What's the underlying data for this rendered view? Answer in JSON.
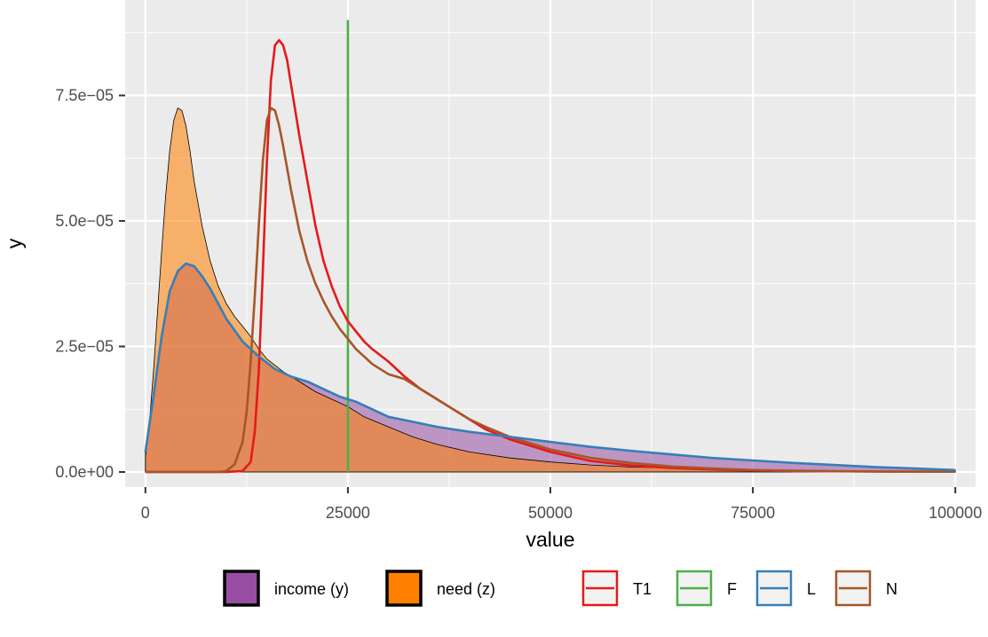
{
  "chart_data": {
    "type": "area",
    "xlabel": "value",
    "ylabel": "y",
    "xlim": [
      -2500,
      102500
    ],
    "ylim": [
      -3e-06,
      9.4e-05
    ],
    "x_ticks": [
      0,
      25000,
      50000,
      75000,
      100000
    ],
    "x_tick_labels": [
      "0",
      "25000",
      "50000",
      "75000",
      "100000"
    ],
    "y_ticks": [
      0,
      2.5e-05,
      5e-05,
      7.5e-05
    ],
    "y_tick_labels": [
      "0.0e+00",
      "2.5e−05",
      "5.0e−05",
      "7.5e−05"
    ],
    "grid": true,
    "legend_position": "bottom",
    "vline": {
      "x": 25000,
      "y_top": 9e-05,
      "series": "F"
    },
    "fill_series": [
      {
        "name": "income (y)",
        "fill": "#984EA3",
        "x": [
          0,
          1000,
          2000,
          3000,
          4000,
          5000,
          6000,
          7000,
          8000,
          9000,
          10000,
          12000,
          14000,
          16000,
          18000,
          20000,
          22000,
          24000,
          25000,
          26000,
          28000,
          30000,
          33000,
          36000,
          40000,
          45000,
          50000,
          55000,
          60000,
          65000,
          70000,
          75000,
          80000,
          85000,
          90000,
          95000,
          100000
        ],
        "values": [
          4e-06,
          1.5e-05,
          2.7e-05,
          3.6e-05,
          4e-05,
          4.15e-05,
          4.1e-05,
          3.9e-05,
          3.65e-05,
          3.35e-05,
          3.05e-05,
          2.6e-05,
          2.3e-05,
          2.05e-05,
          1.9e-05,
          1.8e-05,
          1.65e-05,
          1.5e-05,
          1.45e-05,
          1.4e-05,
          1.25e-05,
          1.1e-05,
          1e-05,
          9e-06,
          8e-06,
          7e-06,
          6e-06,
          5e-06,
          4.2e-06,
          3.5e-06,
          2.8e-06,
          2.3e-06,
          1.8e-06,
          1.4e-06,
          1e-06,
          7e-07,
          4e-07
        ]
      },
      {
        "name": "need (z)",
        "fill": "#FF7F00",
        "x": [
          0,
          500,
          1000,
          1500,
          2000,
          2500,
          3000,
          3500,
          4000,
          4500,
          5000,
          5500,
          6000,
          7000,
          8000,
          9000,
          10000,
          11000,
          12000,
          13000,
          14000,
          15000,
          17000,
          19000,
          21000,
          23000,
          25000,
          27000,
          30000,
          33000,
          36000,
          40000,
          45000,
          50000,
          55000,
          60000,
          70000,
          80000,
          90000,
          100000
        ],
        "values": [
          3e-06,
          1e-05,
          2e-05,
          3.2e-05,
          4.4e-05,
          5.5e-05,
          6.4e-05,
          7e-05,
          7.25e-05,
          7.2e-05,
          6.9e-05,
          6.4e-05,
          5.8e-05,
          4.9e-05,
          4.2e-05,
          3.7e-05,
          3.35e-05,
          3.1e-05,
          2.9e-05,
          2.7e-05,
          2.45e-05,
          2.25e-05,
          2e-05,
          1.8e-05,
          1.6e-05,
          1.45e-05,
          1.3e-05,
          1.1e-05,
          9e-06,
          7e-06,
          5.5e-06,
          4e-06,
          2.8e-06,
          2e-06,
          1.4e-06,
          1e-06,
          6e-07,
          3e-07,
          1.5e-07,
          1e-07
        ]
      }
    ],
    "line_series": [
      {
        "name": "T1",
        "color": "#E41A1C",
        "x": [
          0,
          5000,
          10000,
          12000,
          13000,
          13500,
          14000,
          14500,
          15000,
          15500,
          16000,
          16500,
          17000,
          17500,
          18000,
          19000,
          20000,
          21000,
          22000,
          23000,
          24000,
          25000,
          26000,
          27000,
          28000,
          30000,
          32000,
          34000,
          36000,
          38000,
          40000,
          42000,
          45000,
          50000,
          55000,
          60000,
          65000,
          70000,
          75000,
          80000,
          90000,
          100000
        ],
        "values": [
          0,
          0,
          0,
          2e-07,
          2e-06,
          8e-06,
          2e-05,
          4e-05,
          6.2e-05,
          7.8e-05,
          8.5e-05,
          8.6e-05,
          8.5e-05,
          8.2e-05,
          7.7e-05,
          6.7e-05,
          5.8e-05,
          4.9e-05,
          4.2e-05,
          3.7e-05,
          3.3e-05,
          3e-05,
          2.8e-05,
          2.6e-05,
          2.45e-05,
          2.2e-05,
          1.9e-05,
          1.65e-05,
          1.45e-05,
          1.25e-05,
          1.05e-05,
          8.5e-06,
          6.5e-06,
          4e-06,
          2.2e-06,
          1.3e-06,
          8e-07,
          5e-07,
          3e-07,
          2e-07,
          1e-07,
          5e-08
        ]
      },
      {
        "name": "N",
        "color": "#A65628",
        "x": [
          0,
          5000,
          9000,
          10000,
          11000,
          12000,
          12500,
          13000,
          13500,
          14000,
          14500,
          15000,
          15500,
          16000,
          16500,
          17000,
          18000,
          19000,
          20000,
          21000,
          22000,
          23000,
          24000,
          25000,
          26000,
          27000,
          28000,
          30000,
          32000,
          34000,
          36000,
          38000,
          40000,
          42000,
          45000,
          50000,
          55000,
          60000,
          65000,
          70000,
          75000,
          80000,
          90000,
          100000
        ],
        "values": [
          0,
          0,
          0,
          2e-07,
          1.5e-06,
          6e-06,
          1.2e-05,
          2.2e-05,
          3.5e-05,
          4.9e-05,
          6.2e-05,
          7e-05,
          7.25e-05,
          7.2e-05,
          6.9e-05,
          6.5e-05,
          5.6e-05,
          4.8e-05,
          4.2e-05,
          3.75e-05,
          3.4e-05,
          3.1e-05,
          2.85e-05,
          2.65e-05,
          2.45e-05,
          2.3e-05,
          2.15e-05,
          1.95e-05,
          1.85e-05,
          1.65e-05,
          1.45e-05,
          1.25e-05,
          1.05e-05,
          9e-06,
          7e-06,
          4.5e-06,
          2.8e-06,
          1.8e-06,
          1.1e-06,
          7e-07,
          4e-07,
          2.5e-07,
          1e-07,
          5e-08
        ]
      },
      {
        "name": "L",
        "color": "#377EB8",
        "x": [
          0,
          1000,
          2000,
          3000,
          4000,
          5000,
          6000,
          7000,
          8000,
          9000,
          10000,
          12000,
          14000,
          16000,
          18000,
          20000,
          22000,
          24000,
          25000,
          26000,
          28000,
          30000,
          33000,
          36000,
          40000,
          45000,
          50000,
          55000,
          60000,
          65000,
          70000,
          75000,
          80000,
          85000,
          90000,
          95000,
          100000
        ],
        "values": [
          4e-06,
          1.5e-05,
          2.7e-05,
          3.6e-05,
          4e-05,
          4.15e-05,
          4.1e-05,
          3.9e-05,
          3.65e-05,
          3.35e-05,
          3.05e-05,
          2.6e-05,
          2.3e-05,
          2.05e-05,
          1.9e-05,
          1.8e-05,
          1.65e-05,
          1.5e-05,
          1.45e-05,
          1.4e-05,
          1.25e-05,
          1.1e-05,
          1e-05,
          9e-06,
          8e-06,
          7e-06,
          6e-06,
          5e-06,
          4.2e-06,
          3.5e-06,
          2.8e-06,
          2.3e-06,
          1.8e-06,
          1.4e-06,
          1e-06,
          7e-07,
          4e-07
        ]
      }
    ],
    "legend": {
      "fill_entries": [
        {
          "label": "income (y)",
          "color": "#984EA3"
        },
        {
          "label": "need (z)",
          "color": "#FF7F00"
        }
      ],
      "line_entries": [
        {
          "label": "T1",
          "color": "#E41A1C"
        },
        {
          "label": "F",
          "color": "#4DAF4A"
        },
        {
          "label": "L",
          "color": "#377EB8"
        },
        {
          "label": "N",
          "color": "#A65628"
        }
      ]
    }
  }
}
